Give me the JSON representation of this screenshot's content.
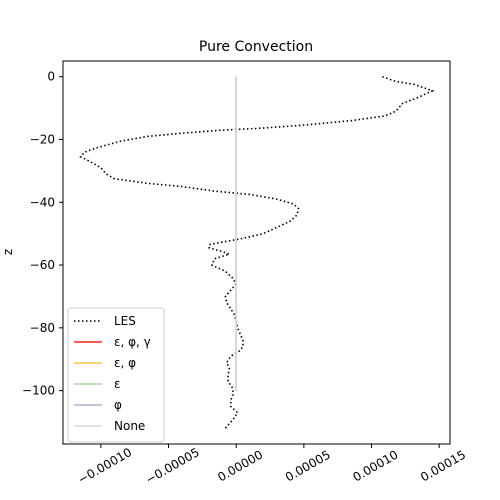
{
  "chart_data": {
    "type": "line",
    "title": "Pure Convection",
    "xlabel": "",
    "ylabel": "z",
    "xlim": [
      -0.000128,
      0.000158
    ],
    "ylim": [
      -117,
      5
    ],
    "xticks": [
      -0.0001,
      -5e-05,
      0.0,
      5e-05,
      0.0001,
      0.00015
    ],
    "xtick_labels": [
      "−0.00010",
      "−0.00005",
      "0.00000",
      "0.00005",
      "0.00010",
      "0.00015"
    ],
    "yticks": [
      0,
      -20,
      -40,
      -60,
      -80,
      -100
    ],
    "ytick_labels": [
      "0",
      "−20",
      "−40",
      "−60",
      "−80",
      "−100"
    ],
    "grid": false,
    "legend_location": "lower-left",
    "series": [
      {
        "name": "LES",
        "color": "#000000",
        "style": "dotted",
        "points": [
          [
            0.000108,
            0
          ],
          [
            0.000118,
            -1.5
          ],
          [
            0.000132,
            -2.5
          ],
          [
            0.000145,
            -4.5
          ],
          [
            0.000135,
            -6.5
          ],
          [
            0.000123,
            -8.5
          ],
          [
            0.000118,
            -11
          ],
          [
            0.00011,
            -12.5
          ],
          [
            8.5e-05,
            -14
          ],
          [
            4.8e-05,
            -15.5
          ],
          [
            1.5e-05,
            -16.5
          ],
          [
            -1e-05,
            -17
          ],
          [
            -4e-05,
            -18
          ],
          [
            -6.5e-05,
            -19
          ],
          [
            -8.5e-05,
            -20.5
          ],
          [
            -0.000102,
            -22.5
          ],
          [
            -0.000112,
            -24
          ],
          [
            -0.000115,
            -25.5
          ],
          [
            -0.000108,
            -27
          ],
          [
            -0.0001,
            -29
          ],
          [
            -9.6e-05,
            -31
          ],
          [
            -9e-05,
            -32.5
          ],
          [
            -6.5e-05,
            -34
          ],
          [
            -4e-05,
            -35
          ],
          [
            -1.5e-05,
            -36.5
          ],
          [
            1e-05,
            -37.5
          ],
          [
            3e-05,
            -39
          ],
          [
            4.2e-05,
            -40.5
          ],
          [
            4.6e-05,
            -42
          ],
          [
            4.5e-05,
            -44
          ],
          [
            4e-05,
            -46
          ],
          [
            3e-05,
            -48
          ],
          [
            2e-05,
            -50
          ],
          [
            5e-06,
            -51.5
          ],
          [
            -8e-06,
            -52.5
          ],
          [
            -2e-05,
            -53.5
          ],
          [
            -2e-05,
            -54.5
          ],
          [
            -1.2e-05,
            -55.5
          ],
          [
            -5e-06,
            -56.5
          ],
          [
            -1.6e-05,
            -58
          ],
          [
            -1.8e-05,
            -60
          ],
          [
            -8e-06,
            -62
          ],
          [
            -3e-06,
            -64
          ],
          [
            0.0,
            -66
          ],
          [
            -4e-06,
            -68
          ],
          [
            -8e-06,
            -70
          ],
          [
            -7e-06,
            -72
          ],
          [
            -4e-06,
            -74
          ],
          [
            -1e-06,
            -76
          ],
          [
            0.0,
            -78
          ],
          [
            1e-06,
            -80
          ],
          [
            3e-06,
            -82
          ],
          [
            5e-06,
            -84
          ],
          [
            5e-06,
            -86
          ],
          [
            2e-06,
            -87.5
          ],
          [
            -4e-06,
            -89
          ],
          [
            -7e-06,
            -91
          ],
          [
            -5e-06,
            -93
          ],
          [
            -6e-06,
            -95
          ],
          [
            -6e-06,
            -97
          ],
          [
            -3e-06,
            -99
          ],
          [
            -2e-06,
            -101
          ],
          [
            -4e-06,
            -103
          ],
          [
            -4e-06,
            -105
          ],
          [
            1e-06,
            -107
          ],
          [
            -2e-06,
            -109
          ],
          [
            -6e-06,
            -111
          ],
          [
            -8e-06,
            -112
          ]
        ]
      },
      {
        "name": "ε, φ, γ",
        "color": "#e8271a",
        "style": "solid",
        "points": [
          [
            0,
            0
          ],
          [
            0,
            -100
          ]
        ]
      },
      {
        "name": "ε, φ",
        "color": "#f5c244",
        "style": "solid",
        "points": [
          [
            0,
            0
          ],
          [
            0,
            -100
          ]
        ]
      },
      {
        "name": "ε",
        "color": "#a9d3a4",
        "style": "solid",
        "points": [
          [
            0,
            0
          ],
          [
            0,
            -100
          ]
        ]
      },
      {
        "name": "φ",
        "color": "#b4b0dc",
        "style": "solid",
        "points": [
          [
            0,
            0
          ],
          [
            0,
            -100
          ]
        ]
      },
      {
        "name": "None",
        "color": "#d9d9d9",
        "style": "solid",
        "points": [
          [
            0,
            0
          ],
          [
            0,
            -100
          ]
        ]
      }
    ]
  }
}
